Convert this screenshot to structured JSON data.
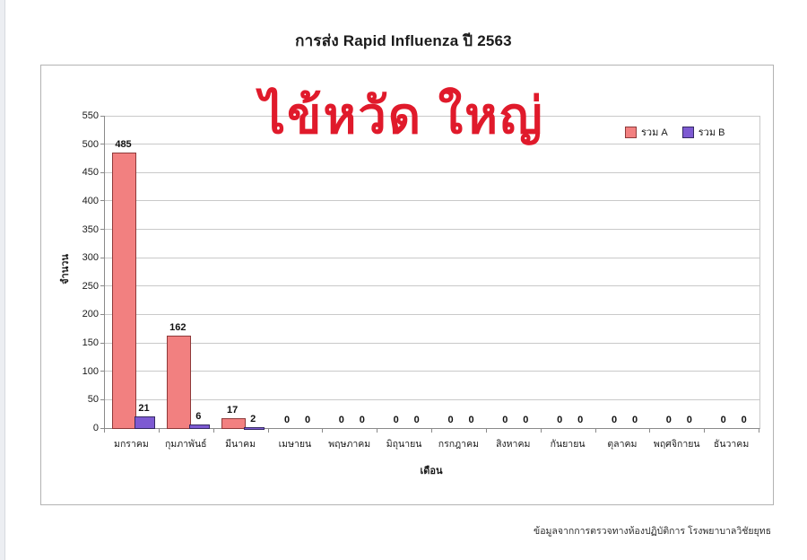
{
  "page": {
    "title": "การส่ง Rapid Influenza ปี 2563",
    "watermark": "ไข้หวัด ใหญ่",
    "source_note": "ข้อมูลจากการตรวจทางห้องปฏิบัติการ โรงพยาบาลวิชัยยุทธ",
    "colors": {
      "watermark": "#e01a2b",
      "grid": "#c9c9c9",
      "axis": "#8a8a8a"
    }
  },
  "chart_data": {
    "type": "bar",
    "title": "การส่ง Rapid Influenza ปี 2563",
    "categories": [
      "มกราคม",
      "กุมภาพันธ์",
      "มีนาคม",
      "เมษายน",
      "พฤษภาคม",
      "มิถุนายน",
      "กรกฎาคม",
      "สิงหาคม",
      "กันยายน",
      "ตุลาคม",
      "พฤศจิกายน",
      "ธันวาคม"
    ],
    "series": [
      {
        "name": "รวม A",
        "color": "#f28080",
        "border_color": "#8e3a3a",
        "values": [
          485,
          162,
          17,
          0,
          0,
          0,
          0,
          0,
          0,
          0,
          0,
          0
        ]
      },
      {
        "name": "รวม B",
        "color": "#7d5ad2",
        "border_color": "#352a63",
        "values": [
          21,
          6,
          2,
          0,
          0,
          0,
          0,
          0,
          0,
          0,
          0,
          0
        ]
      }
    ],
    "xlabel": "เดือน",
    "ylabel": "จำนวน",
    "ylim": [
      0,
      550
    ],
    "ytick_step": 50,
    "grid": true,
    "legend_position": "top-right-inside",
    "data_labels": true
  }
}
